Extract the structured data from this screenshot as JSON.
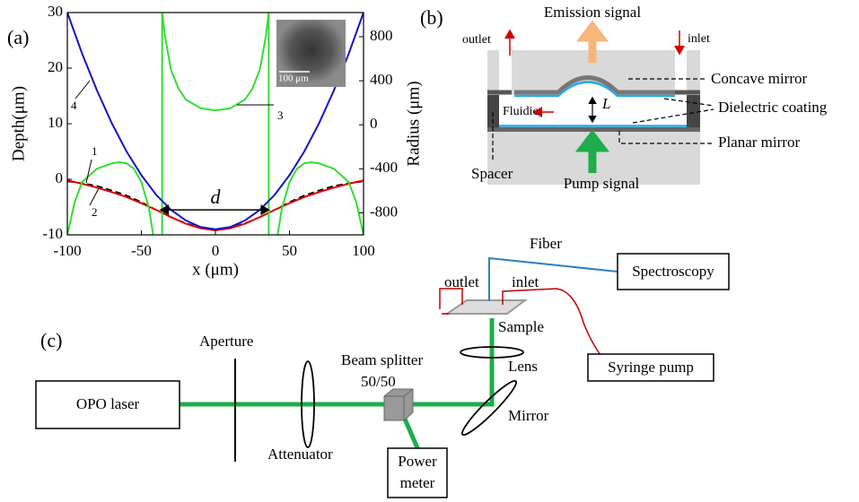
{
  "chart_data": {
    "type": "line",
    "panel_label": "(a)",
    "xlabel": "x (μm)",
    "ylabel": "Depth(μm)",
    "y2label": "Radius (μm)",
    "xlim": [
      -100,
      100
    ],
    "xticks": [
      -100,
      -50,
      0,
      50,
      100
    ],
    "ylim": [
      -10,
      30
    ],
    "yticks": [
      -10,
      0,
      10,
      20,
      30
    ],
    "y2lim": [
      -1000,
      1020
    ],
    "y2ticks": [
      -800,
      -400,
      0,
      400,
      800
    ],
    "grid": false,
    "series": [
      {
        "name": "1",
        "color": "#000000",
        "dashed": true,
        "x": [
          -100,
          -90,
          -80,
          -70,
          -60,
          -50,
          -40,
          -30,
          -20,
          -10,
          0,
          10,
          20,
          30,
          40,
          50,
          60,
          70,
          80,
          90,
          100
        ],
        "values": [
          -0.4,
          -0.7,
          -1.2,
          -2.0,
          -2.9,
          -4.1,
          -5.5,
          -6.8,
          -7.9,
          -8.7,
          -9.0,
          -8.7,
          -7.9,
          -6.8,
          -5.5,
          -4.1,
          -2.9,
          -2.0,
          -1.2,
          -0.7,
          -0.4
        ]
      },
      {
        "name": "2",
        "color": "#e00000",
        "x": [
          -100,
          -90,
          -80,
          -70,
          -60,
          -50,
          -40,
          -30,
          -20,
          -10,
          0,
          10,
          20,
          30,
          40,
          50,
          60,
          70,
          80,
          90,
          100
        ],
        "values": [
          -0.2,
          -0.8,
          -1.5,
          -2.3,
          -3.2,
          -4.3,
          -5.5,
          -6.8,
          -8.0,
          -8.8,
          -9.2,
          -8.8,
          -8.0,
          -6.8,
          -5.5,
          -4.3,
          -3.2,
          -2.3,
          -1.5,
          -0.8,
          -0.2
        ]
      },
      {
        "name": "3",
        "color": "#33dd33",
        "axis": "y2",
        "x": [
          -100,
          -95,
          -90,
          -80,
          -70,
          -65,
          -60,
          -55,
          -50,
          -45,
          -42,
          -39,
          -36,
          -36,
          -34,
          -30,
          -25,
          -20,
          -10,
          0,
          10,
          20,
          25,
          30,
          34,
          36,
          36,
          39,
          42,
          45,
          50,
          55,
          60,
          65,
          70,
          80,
          90,
          95,
          100
        ],
        "values": [
          -1000,
          -700,
          -520,
          -400,
          -350,
          -340,
          -350,
          -400,
          -520,
          -750,
          -1000,
          null,
          -1000,
          1020,
          800,
          500,
          330,
          230,
          150,
          130,
          150,
          230,
          330,
          500,
          800,
          1020,
          -1000,
          null,
          -1000,
          -750,
          -520,
          -400,
          -350,
          -340,
          -350,
          -400,
          -520,
          -700,
          -1000
        ]
      },
      {
        "name": "4",
        "color": "#1515c8",
        "x": [
          -100,
          -90,
          -80,
          -70,
          -60,
          -50,
          -40,
          -30,
          -20,
          -10,
          0,
          10,
          20,
          30,
          40,
          50,
          60,
          70,
          80,
          90,
          100
        ],
        "values": [
          30,
          22.6,
          16.0,
          10.1,
          5.0,
          0.75,
          -2.8,
          -5.5,
          -7.4,
          -8.6,
          -9.0,
          -8.6,
          -7.4,
          -5.5,
          -2.8,
          0.75,
          5.0,
          10.1,
          16.0,
          22.6,
          30
        ]
      }
    ],
    "annotation": {
      "text": "d",
      "x": [
        -36,
        36
      ],
      "y": -5.5
    },
    "inset_scale": "100 μm"
  },
  "diagram_b": {
    "label": "(b)",
    "emission": "Emission signal",
    "outlet": "outlet",
    "inlet": "inlet",
    "concave": "Concave mirror",
    "dielectric": "Dielectric coating",
    "planar": "Planar mirror",
    "fluidic": "Fluidic",
    "length": "L",
    "spacer": "Spacer",
    "pump": "Pump signal"
  },
  "diagram_c": {
    "label": "(c)",
    "laser": "OPO laser",
    "aperture": "Aperture",
    "attenuator": "Attenuator",
    "splitter": "Beam splitter",
    "ratio": "50/50",
    "power": "Power",
    "meter": "meter",
    "mirror": "Mirror",
    "lens": "Lens",
    "sample": "Sample",
    "outlet": "outlet",
    "inlet": "inlet",
    "fiber": "Fiber",
    "spectroscopy": "Spectroscopy",
    "syringe": "Syringe pump"
  }
}
